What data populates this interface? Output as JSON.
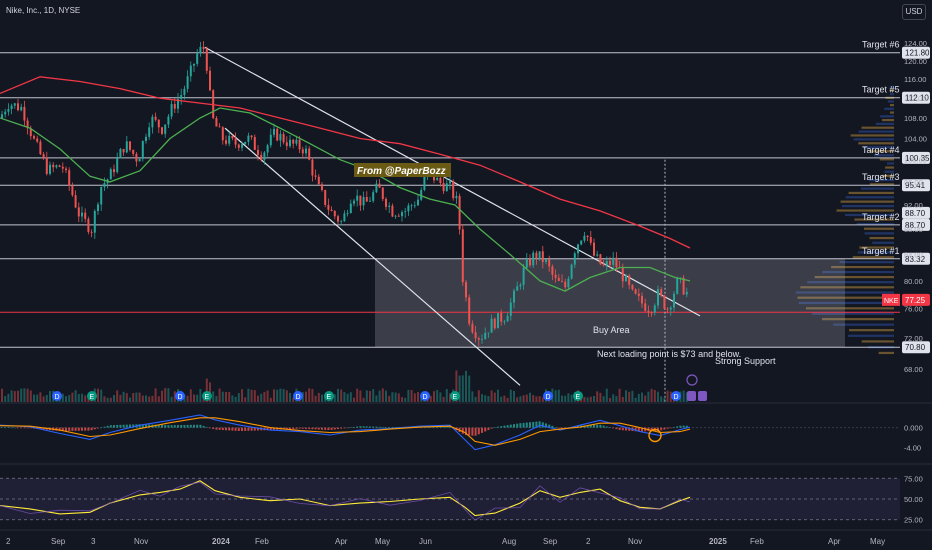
{
  "header": {
    "symbol_title": "Nike, Inc., 1D, NYSE",
    "currency_button": "USD"
  },
  "colors": {
    "background": "#131722",
    "up": "#26a69a",
    "down": "#ef5350",
    "ma_fast": "#4caf50",
    "ma_slow": "#f23645",
    "macd": "#2962ff",
    "signal": "#ff9800",
    "rsi": "#ffeb3b",
    "buy_zone": "#b2b5be",
    "support": "#f23645"
  },
  "chart_data": [
    {
      "type": "candlestick",
      "title": "Nike, Inc., 1D, NYSE",
      "ylim": [
        64,
        127
      ],
      "y_scale": "log",
      "y_ticks": [
        68.0,
        72.0,
        76.0,
        80.0,
        84.0,
        88.0,
        92.0,
        96.0,
        100.0,
        104.0,
        108.0,
        112.0,
        116.0,
        120.0,
        124.0
      ],
      "x_ticks": [
        "2",
        "Sep",
        "3",
        "Nov",
        "2024",
        "Feb",
        "Apr",
        "May",
        "Jun",
        "Aug",
        "Sep",
        "2",
        "Nov",
        "2025",
        "Feb",
        "Apr",
        "May"
      ],
      "price_path": [
        [
          0,
          108
        ],
        [
          8,
          111
        ],
        [
          22,
          110
        ],
        [
          35,
          103
        ],
        [
          48,
          98
        ],
        [
          62,
          99
        ],
        [
          70,
          95
        ],
        [
          80,
          90
        ],
        [
          92,
          88
        ],
        [
          100,
          95
        ],
        [
          110,
          97
        ],
        [
          125,
          103
        ],
        [
          138,
          100
        ],
        [
          150,
          108
        ],
        [
          162,
          106
        ],
        [
          175,
          111
        ],
        [
          182,
          113
        ],
        [
          190,
          117
        ],
        [
          198,
          122
        ],
        [
          205,
          123
        ],
        [
          212,
          108
        ],
        [
          222,
          104
        ],
        [
          235,
          103
        ],
        [
          248,
          104
        ],
        [
          262,
          101
        ],
        [
          275,
          105
        ],
        [
          290,
          103
        ],
        [
          305,
          102
        ],
        [
          318,
          95
        ],
        [
          330,
          91
        ],
        [
          342,
          89
        ],
        [
          352,
          94
        ],
        [
          365,
          92
        ],
        [
          378,
          95
        ],
        [
          392,
          91
        ],
        [
          405,
          91
        ],
        [
          418,
          93
        ],
        [
          428,
          98
        ],
        [
          438,
          96
        ],
        [
          450,
          95
        ],
        [
          458,
          92
        ],
        [
          463,
          80
        ],
        [
          470,
          74
        ],
        [
          480,
          72
        ],
        [
          492,
          74
        ],
        [
          505,
          75
        ],
        [
          515,
          78
        ],
        [
          525,
          82
        ],
        [
          535,
          84
        ],
        [
          545,
          83
        ],
        [
          555,
          80
        ],
        [
          565,
          79
        ],
        [
          575,
          85
        ],
        [
          585,
          88
        ],
        [
          593,
          84
        ],
        [
          603,
          82
        ],
        [
          613,
          83
        ],
        [
          622,
          81
        ],
        [
          632,
          78
        ],
        [
          640,
          77
        ],
        [
          650,
          76
        ],
        [
          658,
          78
        ],
        [
          668,
          76
        ],
        [
          678,
          80
        ],
        [
          688,
          78
        ],
        [
          692,
          77.25
        ]
      ],
      "series": [
        {
          "name": "",
          "style": "ma_fast",
          "points": [
            [
              0,
              108
            ],
            [
              30,
              106
            ],
            [
              60,
              102
            ],
            [
              90,
              97
            ],
            [
              110,
              96
            ],
            [
              140,
              98
            ],
            [
              170,
              104
            ],
            [
              200,
              108
            ],
            [
              220,
              110
            ],
            [
              250,
              109
            ],
            [
              280,
              106
            ],
            [
              310,
              103
            ],
            [
              340,
              100
            ],
            [
              370,
              98
            ],
            [
              400,
              95
            ],
            [
              430,
              93
            ],
            [
              455,
              92
            ],
            [
              480,
              88
            ],
            [
              510,
              84
            ],
            [
              540,
              80
            ],
            [
              565,
              78.5
            ],
            [
              590,
              80.5
            ],
            [
              620,
              82
            ],
            [
              650,
              82
            ],
            [
              675,
              80.5
            ],
            [
              690,
              80
            ]
          ]
        },
        {
          "name": "",
          "style": "ma_slow",
          "points": [
            [
              0,
              113
            ],
            [
              40,
              116.5
            ],
            [
              80,
              115.5
            ],
            [
              120,
              114
            ],
            [
              160,
              112
            ],
            [
              200,
              111
            ],
            [
              240,
              110
            ],
            [
              280,
              108
            ],
            [
              320,
              106
            ],
            [
              360,
              104
            ],
            [
              400,
              103
            ],
            [
              440,
              101
            ],
            [
              480,
              99
            ],
            [
              520,
              96
            ],
            [
              560,
              93
            ],
            [
              600,
              91
            ],
            [
              640,
              88.5
            ],
            [
              670,
              86.5
            ],
            [
              690,
              85
            ]
          ]
        }
      ],
      "price_lines": [
        {
          "label": "Target #6",
          "value": 121.8,
          "price_label": "121.80"
        },
        {
          "label": "Target #5",
          "value": 112.1,
          "price_label": "112.10"
        },
        {
          "label": "Target #4",
          "value": 100.35,
          "price_label": "100.35"
        },
        {
          "label": "Target #3",
          "value": 95.41,
          "price_label": "95.41"
        },
        {
          "label": "Target #2",
          "value": 88.7,
          "price_label": "88.70"
        },
        {
          "label": "Target #1",
          "value": 83.32,
          "price_label": "83.32"
        },
        {
          "label": "",
          "value": 70.8,
          "price_label": "70.80"
        }
      ],
      "last_price": {
        "symbol": "NKE",
        "value": 77.25,
        "price_label": "77.25"
      },
      "second_88_70_label": "88.70",
      "zone": {
        "from": 70.8,
        "to": 83.32
      },
      "annotations": {
        "author": "From @PaperBozz",
        "buy_area": "Buy Area",
        "next_loading": "Next loading point is $73 and below.",
        "strong_support": "Strong Support"
      },
      "trend_lines": [
        {
          "from": [
            205,
            123
          ],
          "to": [
            700,
            75
          ]
        },
        {
          "from": [
            225,
            106
          ],
          "to": [
            520,
            66
          ]
        }
      ]
    },
    {
      "type": "line",
      "title": "",
      "y_ticks": [
        "0.000",
        "-4.00"
      ],
      "ylim": [
        -7,
        4
      ],
      "series": [
        {
          "name": "",
          "style": "macd",
          "points": [
            [
              0,
              0.5
            ],
            [
              30,
              0.2
            ],
            [
              60,
              -1.2
            ],
            [
              90,
              -2.4
            ],
            [
              110,
              -1.0
            ],
            [
              140,
              0.5
            ],
            [
              170,
              1.5
            ],
            [
              200,
              2.6
            ],
            [
              215,
              1.6
            ],
            [
              240,
              0.5
            ],
            [
              270,
              -0.5
            ],
            [
              300,
              -0.8
            ],
            [
              330,
              -1.5
            ],
            [
              360,
              -0.5
            ],
            [
              390,
              -0.2
            ],
            [
              420,
              0.3
            ],
            [
              450,
              0.5
            ],
            [
              465,
              -2.5
            ],
            [
              475,
              -4.5
            ],
            [
              495,
              -3.5
            ],
            [
              520,
              -1.5
            ],
            [
              540,
              0.5
            ],
            [
              560,
              -0.5
            ],
            [
              580,
              0.5
            ],
            [
              600,
              1.5
            ],
            [
              620,
              0.4
            ],
            [
              640,
              -0.8
            ],
            [
              660,
              -1.6
            ],
            [
              680,
              -0.4
            ],
            [
              690,
              0.1
            ]
          ]
        },
        {
          "name": "",
          "style": "signal",
          "points": [
            [
              0,
              0.4
            ],
            [
              30,
              0.3
            ],
            [
              60,
              -0.5
            ],
            [
              90,
              -1.8
            ],
            [
              110,
              -1.5
            ],
            [
              140,
              -0.2
            ],
            [
              170,
              1.0
            ],
            [
              200,
              2.0
            ],
            [
              215,
              2.0
            ],
            [
              240,
              1.2
            ],
            [
              270,
              0.0
            ],
            [
              300,
              -0.6
            ],
            [
              330,
              -1.0
            ],
            [
              360,
              -0.8
            ],
            [
              390,
              -0.3
            ],
            [
              420,
              0.1
            ],
            [
              450,
              0.3
            ],
            [
              465,
              -1.0
            ],
            [
              475,
              -2.8
            ],
            [
              495,
              -3.6
            ],
            [
              520,
              -2.4
            ],
            [
              540,
              -0.8
            ],
            [
              560,
              -0.3
            ],
            [
              580,
              0.1
            ],
            [
              600,
              0.9
            ],
            [
              620,
              0.9
            ],
            [
              640,
              0.0
            ],
            [
              660,
              -1.0
            ],
            [
              680,
              -0.8
            ],
            [
              690,
              -0.3
            ]
          ]
        }
      ]
    },
    {
      "type": "line",
      "title": "",
      "y_ticks": [
        "75.00",
        "50.00",
        "25.00"
      ],
      "ylim": [
        15,
        85
      ],
      "series": [
        {
          "name": "",
          "style": "rsi",
          "points": [
            [
              0,
              42
            ],
            [
              30,
              38
            ],
            [
              60,
              32
            ],
            [
              90,
              34
            ],
            [
              110,
              45
            ],
            [
              140,
              55
            ],
            [
              160,
              58
            ],
            [
              180,
              62
            ],
            [
              200,
              72
            ],
            [
              215,
              60
            ],
            [
              240,
              52
            ],
            [
              270,
              48
            ],
            [
              300,
              50
            ],
            [
              330,
              42
            ],
            [
              360,
              45
            ],
            [
              390,
              47
            ],
            [
              420,
              50
            ],
            [
              450,
              52
            ],
            [
              465,
              40
            ],
            [
              475,
              30
            ],
            [
              495,
              33
            ],
            [
              520,
              45
            ],
            [
              540,
              60
            ],
            [
              560,
              52
            ],
            [
              580,
              58
            ],
            [
              600,
              62
            ],
            [
              620,
              48
            ],
            [
              640,
              40
            ],
            [
              660,
              38
            ],
            [
              680,
              48
            ],
            [
              690,
              52
            ]
          ]
        }
      ]
    }
  ]
}
